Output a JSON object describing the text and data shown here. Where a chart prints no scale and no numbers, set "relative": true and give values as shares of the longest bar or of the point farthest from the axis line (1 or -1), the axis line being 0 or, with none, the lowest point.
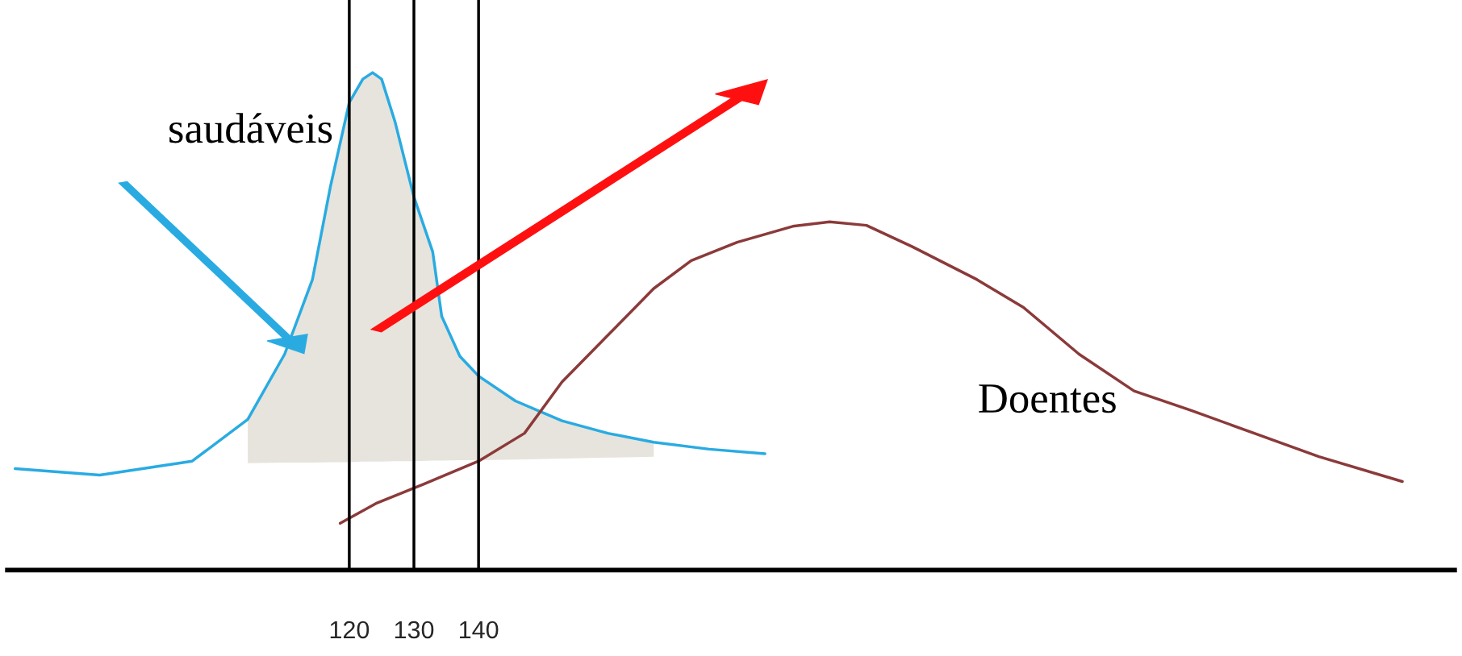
{
  "chart_data": {
    "type": "line",
    "relative": true,
    "xlim": [
      67.1,
      291
    ],
    "xticks": [
      120,
      130,
      140
    ],
    "tick_labels": "x",
    "legend": false,
    "series": [
      {
        "name": "saudáveis",
        "color": "#29abe2",
        "x": [
          68.3,
          81.4,
          95.7,
          104.3,
          110,
          114.3,
          117.1,
          120,
          122.1,
          123.6,
          125,
          127.1,
          130,
          132.9,
          134.3,
          137.1,
          140,
          145.7,
          152.9,
          160,
          167.1,
          175.7,
          184.3
        ],
        "values": [
          0.204,
          0.191,
          0.219,
          0.303,
          0.434,
          0.584,
          0.772,
          0.94,
          0.987,
          1,
          0.987,
          0.9,
          0.75,
          0.64,
          0.51,
          0.43,
          0.39,
          0.34,
          0.3,
          0.275,
          0.257,
          0.243,
          0.234
        ],
        "lower": [
          null,
          null,
          null,
          0.215,
          0.216,
          0.216,
          0.217,
          0.217,
          0.218,
          0.218,
          0.218,
          0.219,
          0.219,
          0.22,
          0.22,
          0.221,
          0.221,
          0.222,
          0.224,
          0.226,
          0.228,
          null,
          null
        ],
        "upper": [
          null,
          null,
          null,
          0.303,
          0.434,
          0.584,
          0.772,
          0.94,
          0.987,
          1,
          0.987,
          0.9,
          0.75,
          0.64,
          0.51,
          0.43,
          0.39,
          0.34,
          0.3,
          0.275,
          0.257,
          null,
          null
        ]
      },
      {
        "name": "Doentes",
        "color": "#8b3a3a",
        "x": [
          118.6,
          124.3,
          131.4,
          140,
          147.1,
          152.9,
          160,
          167.1,
          172.9,
          180,
          188.6,
          194.3,
          200,
          207.1,
          217.1,
          224.3,
          232.9,
          241.4,
          250,
          260,
          270,
          282.9
        ],
        "values": [
          0.094,
          0.135,
          0.172,
          0.219,
          0.275,
          0.378,
          0.472,
          0.566,
          0.622,
          0.659,
          0.691,
          0.7,
          0.693,
          0.65,
          0.584,
          0.528,
          0.434,
          0.36,
          0.322,
          0.275,
          0.228,
          0.178
        ]
      }
    ],
    "ref_lines": [
      {
        "axis": "x",
        "value": 120,
        "color": "#000000"
      },
      {
        "axis": "x",
        "value": 130,
        "color": "#000000"
      },
      {
        "axis": "x",
        "value": 140,
        "color": "#000000"
      }
    ]
  }
}
